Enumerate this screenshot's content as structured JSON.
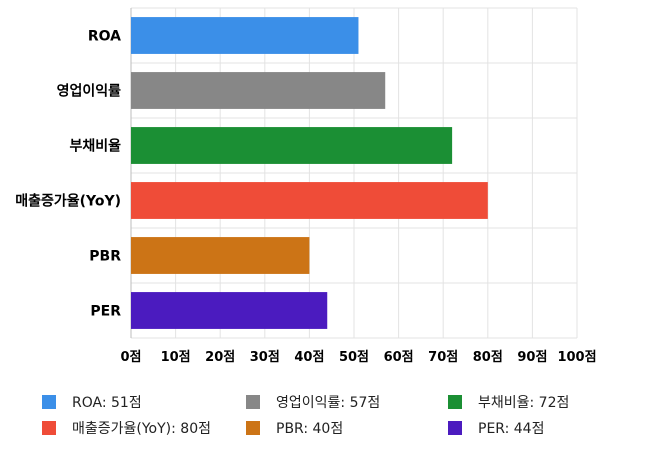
{
  "chart_data": {
    "type": "bar",
    "orientation": "horizontal",
    "categories": [
      "ROA",
      "영업이익률",
      "부채비율",
      "매출증가율(YoY)",
      "PBR",
      "PER"
    ],
    "values": [
      51,
      57,
      72,
      80,
      40,
      44
    ],
    "colors": [
      "#3b8fe8",
      "#878787",
      "#1b8f34",
      "#ef4c38",
      "#cc7416",
      "#4b1bbf"
    ],
    "xlim": [
      0,
      100
    ],
    "xticks": [
      0,
      10,
      20,
      30,
      40,
      50,
      60,
      70,
      80,
      90,
      100
    ],
    "tick_suffix": "점",
    "grid": true,
    "legend_position": "bottom",
    "legend": [
      {
        "label": "ROA: 51점",
        "color": "#3b8fe8"
      },
      {
        "label": "영업이익률: 57점",
        "color": "#878787"
      },
      {
        "label": "부채비율: 72점",
        "color": "#1b8f34"
      },
      {
        "label": "매출증가율(YoY): 80점",
        "color": "#ef4c38"
      },
      {
        "label": "PBR: 40점",
        "color": "#cc7416"
      },
      {
        "label": "PER: 44점",
        "color": "#4b1bbf"
      }
    ]
  }
}
